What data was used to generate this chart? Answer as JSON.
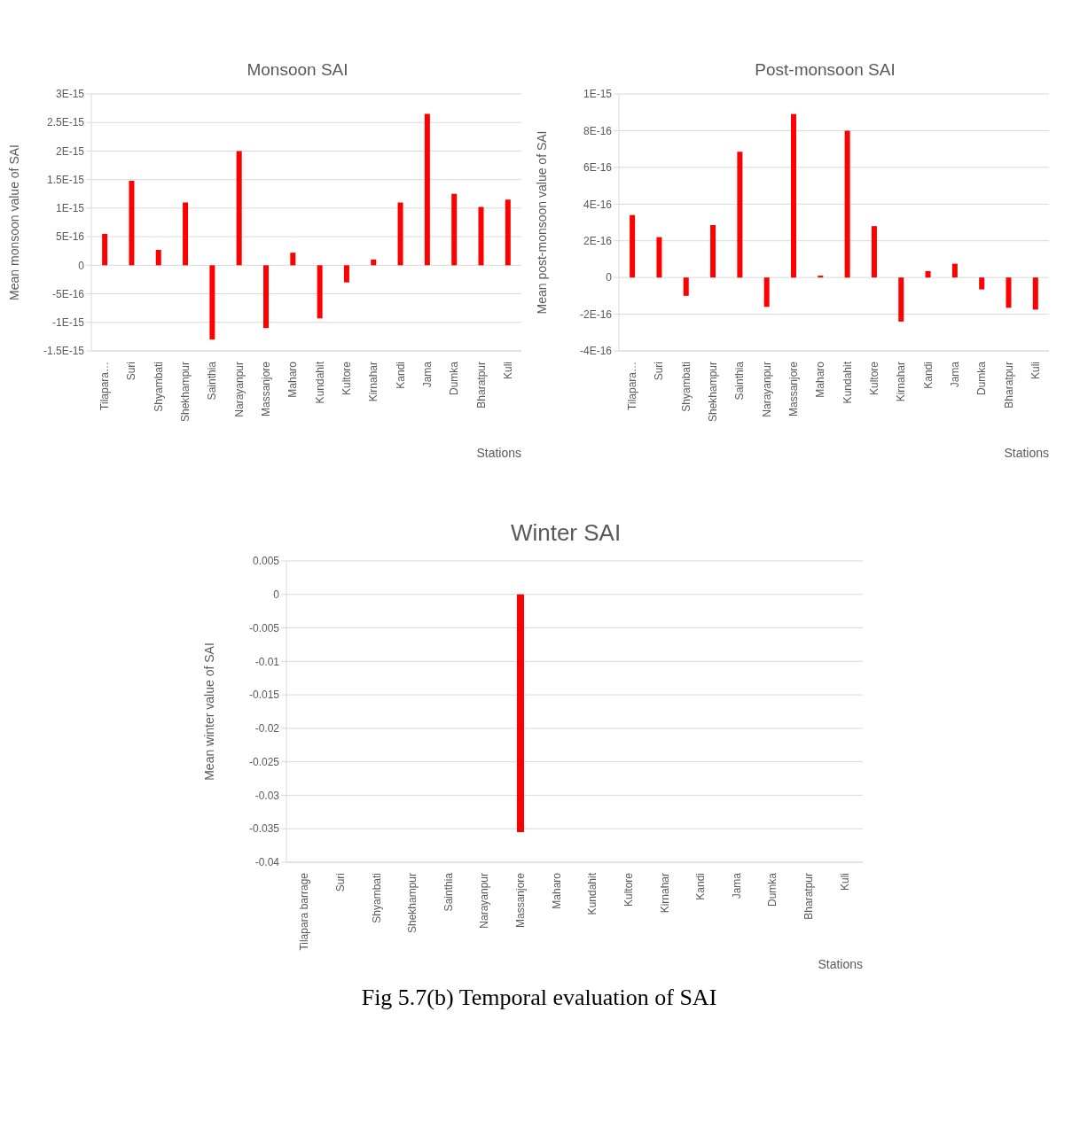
{
  "chart_data": [
    {
      "type": "bar",
      "title": "Monsoon SAI",
      "xlabel": "Stations",
      "ylabel": "Mean  monsoon  value of SAI",
      "categories": [
        "Tilapara…",
        "Suri",
        "Shyambati",
        "Shekhampur",
        "Sainthia",
        "Narayanpur",
        "Massanjore",
        "Maharo",
        "Kundahit",
        "Kultore",
        "Kirnahar",
        "Kandi",
        "Jama",
        "Dumka",
        "Bharatpur",
        "Kuli"
      ],
      "values": [
        5.5e-16,
        1.48e-15,
        2.7e-16,
        1.1e-15,
        -1.3e-15,
        2e-15,
        -1.1e-15,
        2.2e-16,
        -9.3e-16,
        -3e-16,
        1e-16,
        1.1e-15,
        2.65e-15,
        1.25e-15,
        1.02e-15,
        1.15e-15
      ],
      "color": "#ff0000",
      "ylim": [
        -1.5e-15,
        3e-15
      ],
      "yticks": [
        {
          "value": -1.5e-15,
          "label": "-1.5E-15"
        },
        {
          "value": -1e-15,
          "label": "-1E-15"
        },
        {
          "value": -5e-16,
          "label": "-5E-16"
        },
        0,
        {
          "value": 5e-16,
          "label": "5E-16"
        },
        {
          "value": 1e-15,
          "label": "1E-15"
        },
        {
          "value": 1.5e-15,
          "label": "1.5E-15"
        },
        {
          "value": 2e-15,
          "label": "2E-15"
        },
        {
          "value": 2.5e-15,
          "label": "2.5E-15"
        },
        {
          "value": 3e-15,
          "label": "3E-15"
        }
      ],
      "grid": "y"
    },
    {
      "type": "bar",
      "title": "Post-monsoon SAI",
      "xlabel": "Stations",
      "ylabel": "Mean  post-monsoon  value of SAI",
      "categories": [
        "Tilapara…",
        "Suri",
        "Shyambati",
        "Shekhampur",
        "Sainthia",
        "Narayanpur",
        "Massanjore",
        "Maharo",
        "Kundahit",
        "Kultore",
        "Kirnahar",
        "Kandi",
        "Jama",
        "Dumka",
        "Bharatpur",
        "Kuli"
      ],
      "values": [
        3.4e-16,
        2.2e-16,
        -1e-16,
        2.85e-16,
        6.85e-16,
        -1.6e-16,
        8.9e-16,
        1e-17,
        8e-16,
        2.8e-16,
        -2.4e-16,
        3.5e-17,
        7.5e-17,
        -6.5e-17,
        -1.65e-16,
        -1.75e-16
      ],
      "color": "#ff0000",
      "ylim": [
        -4e-16,
        1e-15
      ],
      "yticks": [
        {
          "value": -4e-16,
          "label": "-4E-16"
        },
        {
          "value": -2e-16,
          "label": "-2E-16"
        },
        0,
        {
          "value": 2e-16,
          "label": "2E-16"
        },
        {
          "value": 4e-16,
          "label": "4E-16"
        },
        {
          "value": 6e-16,
          "label": "6E-16"
        },
        {
          "value": 8e-16,
          "label": "8E-16"
        },
        {
          "value": 1e-15,
          "label": "1E-15"
        }
      ],
      "grid": "y"
    },
    {
      "type": "bar",
      "title": "Winter SAI",
      "xlabel": "Stations",
      "ylabel": "Mean  winter  value of SAI",
      "categories": [
        "Tilapara barrage",
        "Suri",
        "Shyambati",
        "Shekhampur",
        "Sainthia",
        "Narayanpur",
        "Massanjore",
        "Maharo",
        "Kundahit",
        "Kultore",
        "Kirnahar",
        "Kandi",
        "Jama",
        "Dumka",
        "Bharatpur",
        "Kuli"
      ],
      "values": [
        0,
        0,
        0,
        0,
        0,
        0,
        -0.0355,
        0,
        0,
        0,
        0,
        0,
        0,
        0,
        0,
        0
      ],
      "color": "#ff0000",
      "ylim": [
        -0.04,
        0.005
      ],
      "yticks": [
        -0.04,
        -0.035,
        -0.03,
        -0.025,
        -0.02,
        -0.015,
        -0.01,
        -0.005,
        0,
        0.005
      ],
      "grid": "y",
      "annotations": [
        "Fig 5.7(b) Temporal evaluation of SAI"
      ]
    }
  ]
}
